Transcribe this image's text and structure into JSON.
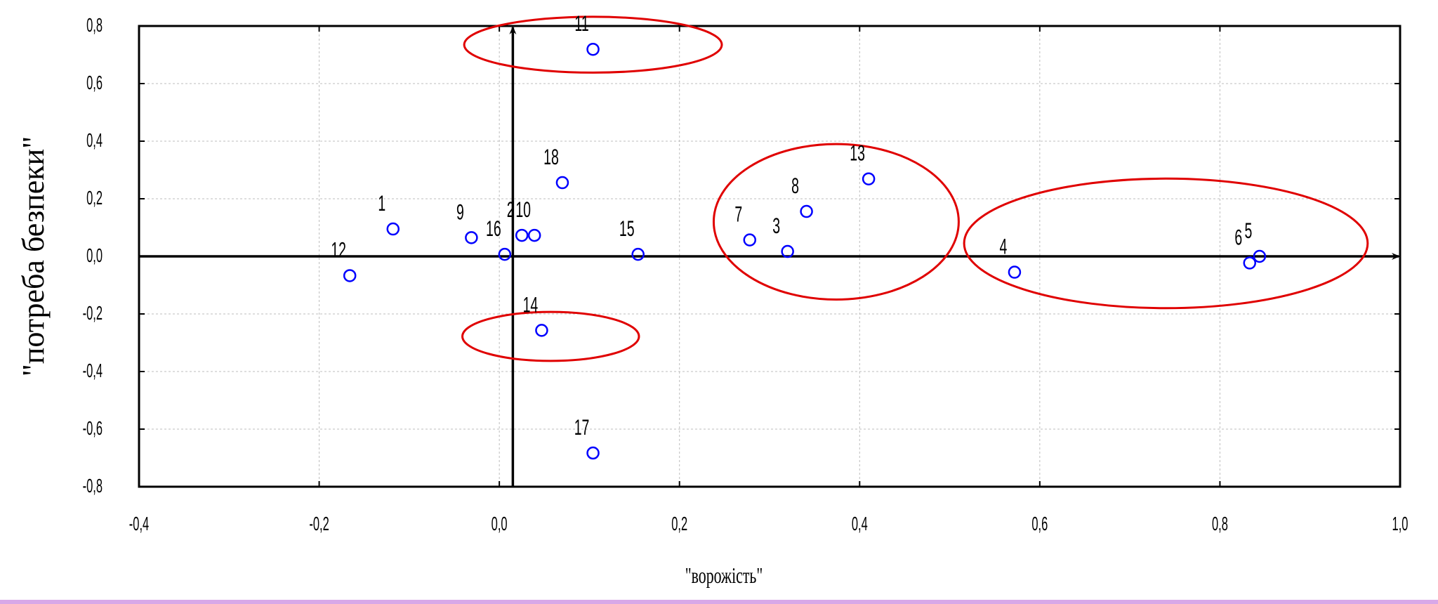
{
  "chart_data": {
    "type": "scatter",
    "xlabel": "\"ворожість\"",
    "ylabel": "\"потреба безпеки\"",
    "xlim": [
      -0.4,
      1.0
    ],
    "ylim": [
      -0.8,
      0.8
    ],
    "x_ticks": [
      -0.4,
      -0.2,
      0.0,
      0.2,
      0.4,
      0.6,
      0.8,
      1.0
    ],
    "x_tick_labels": [
      "-0,4",
      "-0,2",
      "0,0",
      "0,2",
      "0,4",
      "0,6",
      "0,8",
      "1,0"
    ],
    "y_ticks": [
      0.8,
      0.6,
      0.4,
      0.2,
      0.0,
      -0.2,
      -0.4,
      -0.6,
      -0.8
    ],
    "y_tick_labels": [
      "0,8",
      "0,6",
      "0,4",
      "0,2",
      "0,0",
      "-0,2",
      "-0,4",
      "-0,6",
      "-0,8"
    ],
    "grid": true,
    "axis_arrows": {
      "x_at": 0.0,
      "y_at": 0.015
    },
    "marker_color": "#0000ff",
    "ellipse_color": "#e00000",
    "points": [
      {
        "label": "1",
        "x": -0.118,
        "y": 0.095
      },
      {
        "label": "2",
        "x": 0.025,
        "y": 0.073
      },
      {
        "label": "3",
        "x": 0.32,
        "y": 0.017
      },
      {
        "label": "4",
        "x": 0.572,
        "y": -0.055
      },
      {
        "label": "5",
        "x": 0.844,
        "y": 0.0
      },
      {
        "label": "6",
        "x": 0.833,
        "y": -0.023
      },
      {
        "label": "7",
        "x": 0.278,
        "y": 0.057
      },
      {
        "label": "8",
        "x": 0.341,
        "y": 0.156
      },
      {
        "label": "9",
        "x": -0.031,
        "y": 0.065
      },
      {
        "label": "10",
        "x": 0.039,
        "y": 0.073
      },
      {
        "label": "11",
        "x": 0.104,
        "y": 0.719
      },
      {
        "label": "12",
        "x": -0.166,
        "y": -0.067
      },
      {
        "label": "13",
        "x": 0.41,
        "y": 0.269
      },
      {
        "label": "14",
        "x": 0.047,
        "y": -0.257
      },
      {
        "label": "15",
        "x": 0.154,
        "y": 0.007
      },
      {
        "label": "16",
        "x": 0.006,
        "y": 0.007
      },
      {
        "label": "17",
        "x": 0.104,
        "y": -0.683
      },
      {
        "label": "18",
        "x": 0.07,
        "y": 0.256
      }
    ],
    "ellipses": [
      {
        "cx": 0.104,
        "cy": 0.735,
        "rx": 0.143,
        "ry": 0.097
      },
      {
        "cx": 0.057,
        "cy": -0.278,
        "rx": 0.098,
        "ry": 0.085
      },
      {
        "cx": 0.374,
        "cy": 0.12,
        "rx": 0.136,
        "ry": 0.27
      },
      {
        "cx": 0.74,
        "cy": 0.045,
        "rx": 0.224,
        "ry": 0.225
      }
    ]
  }
}
